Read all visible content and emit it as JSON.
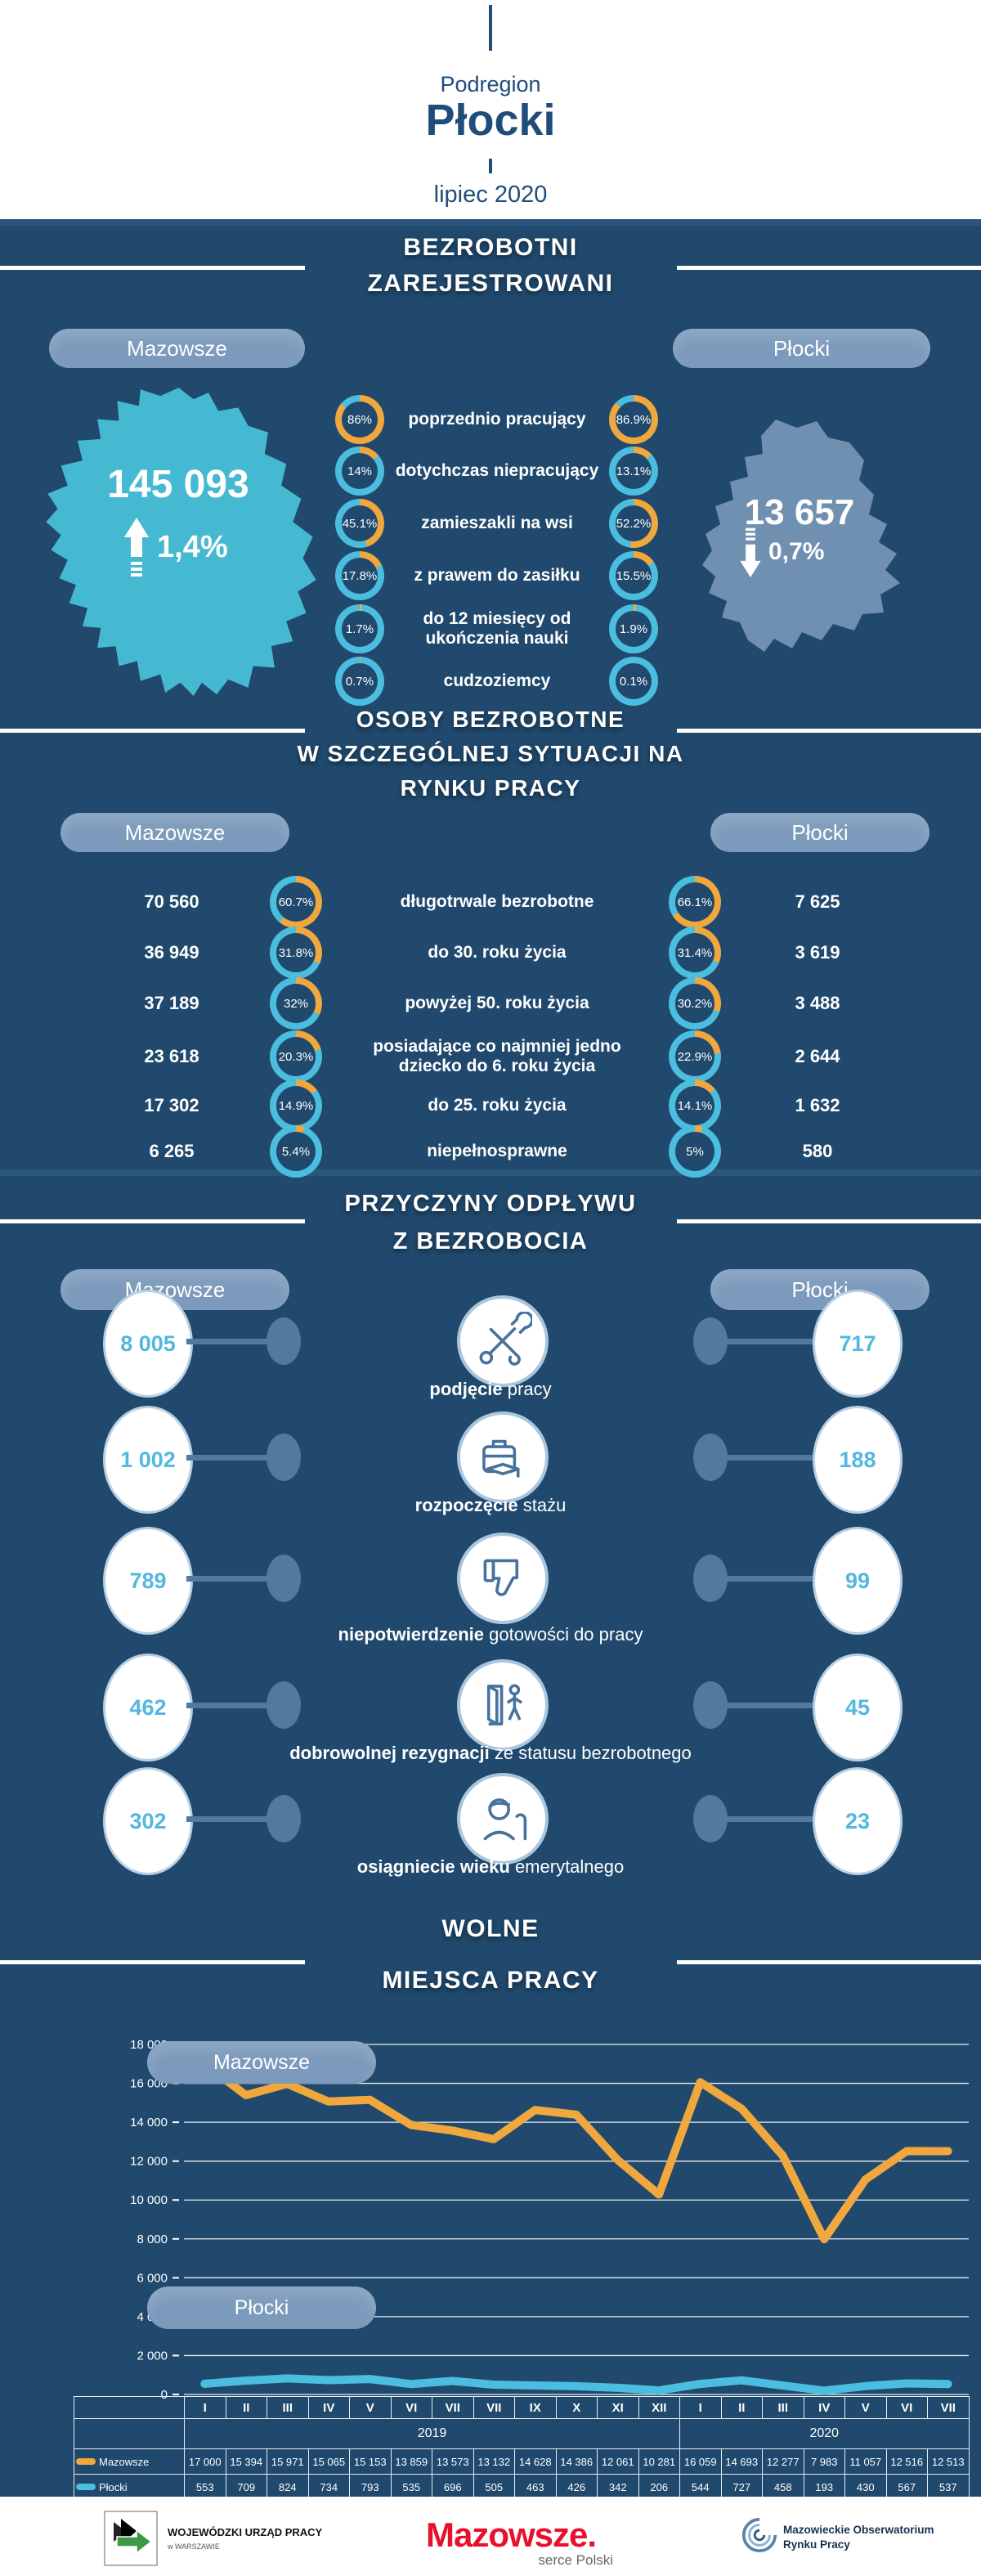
{
  "header": {
    "region_label": "Podregion",
    "region_name": "Płocki",
    "period": "lipiec 2020"
  },
  "buttons": {
    "left": "Mazowsze",
    "right": "Płocki"
  },
  "colors": {
    "background": "#20496D",
    "button": "#7C9ABB",
    "orange": "#EFA73E",
    "cyan": "#4BBDDF",
    "map_mazowsze": "#45B9D1",
    "map_plocki": "#7090B1",
    "number_cyan": "#53B7DF",
    "node": "#54799E",
    "header_navy": "#1F4C7A",
    "logo_red": "#E8112D"
  },
  "registered": {
    "title_lines": [
      "BEZROBOTNI",
      "ZAREJESTROWANI"
    ],
    "left_total": "145 093",
    "left_change": "1,4%",
    "left_trend": "up",
    "right_total": "13 657",
    "right_change": "0,7%",
    "right_trend": "down",
    "rows": [
      {
        "label": "poprzednio pracujący",
        "left": "86%",
        "left_pct": 86,
        "right": "86.9%",
        "right_pct": 86.9
      },
      {
        "label": "dotychczas niepracujący",
        "left": "14%",
        "left_pct": 14,
        "right": "13.1%",
        "right_pct": 13.1
      },
      {
        "label": "zamieszakli na wsi",
        "left": "45.1%",
        "left_pct": 45.1,
        "right": "52.2%",
        "right_pct": 52.2
      },
      {
        "label": "z prawem do zasiłku",
        "left": "17.8%",
        "left_pct": 17.8,
        "right": "15.5%",
        "right_pct": 15.5
      },
      {
        "label": "do 12 miesięcy od ukończenia nauki",
        "left": "1.7%",
        "left_pct": 1.7,
        "right": "1.9%",
        "right_pct": 1.9
      },
      {
        "label": "cudzoziemcy",
        "left": "0.7%",
        "left_pct": 0.7,
        "right": "0.1%",
        "right_pct": 0.1
      }
    ]
  },
  "special": {
    "title_lines": [
      "OSOBY BEZROBOTNE",
      "W SZCZEGÓLNEJ SYTUACJI NA",
      "RYNKU PRACY"
    ],
    "rows": [
      {
        "left_value": "70 560",
        "left": "60.7%",
        "left_pct": 60.7,
        "label": "długotrwale bezrobotne",
        "right": "66.1%",
        "right_pct": 66.1,
        "right_value": "7 625"
      },
      {
        "left_value": "36 949",
        "left": "31.8%",
        "left_pct": 31.8,
        "label": "do 30. roku życia",
        "right": "31.4%",
        "right_pct": 31.4,
        "right_value": "3 619"
      },
      {
        "left_value": "37 189",
        "left": "32%",
        "left_pct": 32,
        "label": "powyżej 50. roku życia",
        "right": "30.2%",
        "right_pct": 30.2,
        "right_value": "3 488"
      },
      {
        "left_value": "23 618",
        "left": "20.3%",
        "left_pct": 20.3,
        "label": "posiadające co najmniej jedno dziecko do 6. roku życia",
        "right": "22.9%",
        "right_pct": 22.9,
        "right_value": "2 644"
      },
      {
        "left_value": "17 302",
        "left": "14.9%",
        "left_pct": 14.9,
        "label": "do 25. roku życia",
        "right": "14.1%",
        "right_pct": 14.1,
        "right_value": "1 632"
      },
      {
        "left_value": "6 265",
        "left": "5.4%",
        "left_pct": 5.4,
        "label": "niepełnosprawne",
        "right": "5%",
        "right_pct": 5,
        "right_value": "580"
      }
    ]
  },
  "outflow": {
    "title_lines": [
      "PRZYCZYNY ODPŁYWU",
      "Z BEZROBOCIA"
    ],
    "rows": [
      {
        "left": "8 005",
        "right": "717",
        "label_bold": "podjęcie",
        "label_rest": " pracy",
        "icon": "tools-icon"
      },
      {
        "left": "1 002",
        "right": "188",
        "label_bold": "rozpoczęcie",
        "label_rest": " stażu",
        "icon": "internship-briefcase-icon"
      },
      {
        "left": "789",
        "right": "99",
        "label_bold": "niepotwierdzenie",
        "label_rest": " gotowości do pracy",
        "icon": "thumbs-down-icon"
      },
      {
        "left": "462",
        "right": "45",
        "label_bold": "dobrowolnej rezygnacji",
        "label_rest": " ze statusu bezrobotnego",
        "icon": "exit-door-icon"
      },
      {
        "left": "302",
        "right": "23",
        "label_bold": "osiągniecie wieku",
        "label_rest": " emerytalnego",
        "icon": "retirement-icon"
      }
    ]
  },
  "vacancies": {
    "title_lines": [
      "WOLNE",
      "MIEJSCA PRACY"
    ]
  },
  "chart_data": {
    "type": "line",
    "title": "WOLNE MIEJSCA PRACY",
    "x": [
      "I",
      "II",
      "III",
      "IV",
      "V",
      "VI",
      "VII",
      "VII",
      "IX",
      "X",
      "XI",
      "XII",
      "I",
      "II",
      "III",
      "IV",
      "V",
      "VI",
      "VII"
    ],
    "year_groups": [
      {
        "label": "2019",
        "span": 12
      },
      {
        "label": "2020",
        "span": 7
      }
    ],
    "series": [
      {
        "name": "Mazowsze",
        "color": "#EFA73E",
        "values": [
          17000,
          15394,
          15971,
          15065,
          15153,
          13859,
          13573,
          13132,
          14628,
          14386,
          12061,
          10281,
          16059,
          14693,
          12277,
          7983,
          11057,
          12516,
          12513
        ]
      },
      {
        "name": "Płocki",
        "color": "#4BBDDF",
        "values": [
          553,
          709,
          824,
          734,
          793,
          535,
          696,
          505,
          463,
          426,
          342,
          206,
          544,
          727,
          458,
          193,
          430,
          567,
          537
        ]
      }
    ],
    "ylim": [
      0,
      18000
    ],
    "ytick_step": 2000,
    "grid": true,
    "legend_position": "left-overlay"
  },
  "footer": {
    "wup_line1": "WOJEWÓDZKI URZĄD PRACY",
    "wup_line2": "w WARSZAWIE",
    "mazowsze_logo": "Mazowsze.",
    "mazowsze_sub": "serce Polski",
    "morp_line1": "Mazowieckie Obserwatorium",
    "morp_line2": "Rynku Pracy"
  }
}
